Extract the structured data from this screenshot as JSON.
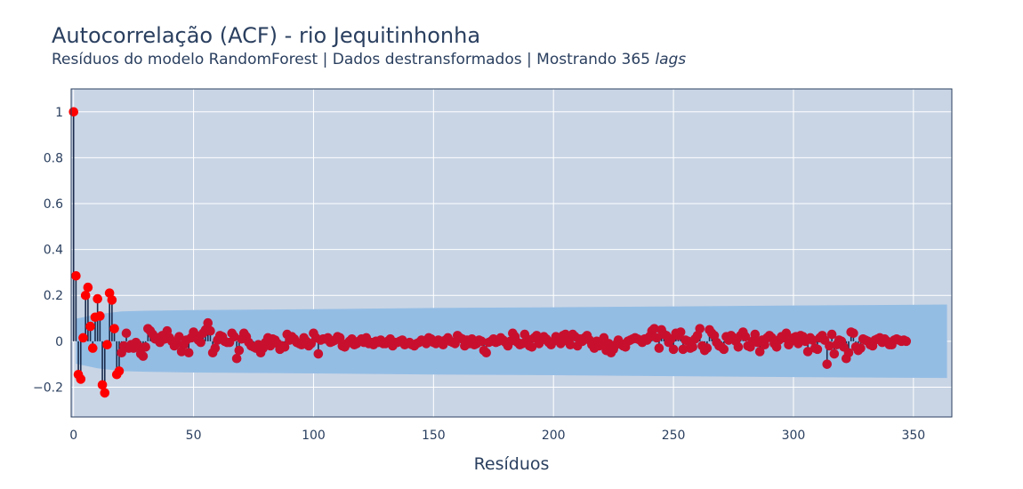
{
  "title": "Autocorrelação (ACF) - rio Jequitinhonha",
  "subtitle": {
    "text": "Resíduos do modelo RandomForest | Dados destransformados | Mostrando 365",
    "italic_suffix": "lags"
  },
  "colors": {
    "plot_background": "#c9d5e5",
    "confidence_band": "#94bde4",
    "stem": "#1a2b4c",
    "marker": "#ff0000",
    "marker_muted": "#c8102e",
    "grid": "#ffffff",
    "text": "#2a3f5f"
  },
  "chart_data": {
    "type": "scatter",
    "xlabel": "Resíduos",
    "ylabel": "",
    "xlim": [
      -1,
      366
    ],
    "ylim": [
      -0.33,
      1.1
    ],
    "x_ticks": [
      0,
      50,
      100,
      150,
      200,
      250,
      300,
      350
    ],
    "x_tick_labels": [
      "0",
      "50",
      "100",
      "150",
      "200",
      "250",
      "300",
      "350"
    ],
    "y_ticks": [
      -0.2,
      0,
      0.2,
      0.4,
      0.6,
      0.8,
      1
    ],
    "y_tick_labels": [
      "−0.2",
      "0",
      "0.2",
      "0.4",
      "0.6",
      "0.8",
      "1"
    ],
    "grid": true,
    "confidence_band": {
      "lags": [
        1,
        10,
        20,
        30,
        50,
        100,
        150,
        200,
        250,
        300,
        364
      ],
      "upper": [
        0.098,
        0.118,
        0.13,
        0.133,
        0.136,
        0.14,
        0.145,
        0.148,
        0.152,
        0.156,
        0.16
      ],
      "lower": [
        -0.098,
        -0.118,
        -0.13,
        -0.133,
        -0.136,
        -0.14,
        -0.145,
        -0.148,
        -0.152,
        -0.156,
        -0.16
      ]
    },
    "lags_start": 0,
    "acf": [
      1.0,
      0.285,
      -0.145,
      -0.165,
      0.015,
      0.2,
      0.235,
      0.065,
      -0.03,
      0.105,
      0.185,
      0.11,
      -0.19,
      -0.225,
      -0.015,
      0.21,
      0.18,
      0.055,
      -0.145,
      -0.13,
      -0.05,
      -0.02,
      0.035,
      -0.03,
      -0.015,
      -0.03,
      -0.005,
      -0.02,
      -0.055,
      -0.065,
      -0.025,
      0.055,
      0.045,
      0.03,
      0.01,
      0.015,
      -0.005,
      0.025,
      0.01,
      0.045,
      0.015,
      0.0,
      -0.02,
      -0.01,
      0.02,
      -0.045,
      -0.015,
      0.005,
      -0.05,
      0.015,
      0.04,
      0.025,
      0.005,
      -0.005,
      0.035,
      0.05,
      0.08,
      0.045,
      -0.05,
      -0.03,
      0.005,
      0.025,
      0.02,
      0.0,
      -0.005,
      -0.005,
      0.035,
      0.02,
      -0.075,
      -0.04,
      0.01,
      0.035,
      0.02,
      -0.005,
      -0.02,
      -0.025,
      -0.03,
      -0.015,
      -0.05,
      -0.03,
      -0.005,
      0.015,
      -0.02,
      0.01,
      0.005,
      -0.01,
      -0.035,
      -0.02,
      -0.025,
      0.03,
      0.005,
      0.02,
      0.01,
      -0.005,
      -0.01,
      -0.015,
      0.015,
      0.0,
      -0.02,
      -0.01,
      0.035,
      0.015,
      -0.055,
      0.005,
      0.01,
      0.01,
      0.015,
      -0.005,
      0.0,
      0.005,
      0.02,
      0.015,
      -0.02,
      -0.025,
      -0.01,
      0.0,
      0.01,
      -0.015,
      -0.01,
      0.0,
      0.01,
      -0.005,
      0.015,
      -0.01,
      -0.005,
      -0.015,
      0.0,
      -0.005,
      0.005,
      -0.01,
      -0.01,
      0.0,
      0.01,
      -0.02,
      -0.005,
      -0.005,
      0.0,
      0.005,
      -0.015,
      -0.01,
      -0.005,
      -0.015,
      -0.02,
      -0.01,
      -0.005,
      0.005,
      0.0,
      -0.01,
      0.015,
      0.01,
      -0.005,
      -0.01,
      0.005,
      0.0,
      -0.015,
      0.005,
      0.015,
      0.0,
      -0.005,
      -0.01,
      0.025,
      0.015,
      0.01,
      -0.02,
      0.005,
      -0.01,
      0.01,
      -0.015,
      -0.01,
      0.005,
      0.0,
      -0.04,
      -0.05,
      -0.005,
      0.0,
      0.01,
      -0.005,
      0.0,
      0.015,
      0.005,
      -0.005,
      -0.02,
      0.0,
      0.035,
      0.02,
      -0.005,
      -0.015,
      -0.01,
      0.03,
      0.01,
      -0.02,
      -0.025,
      0.015,
      0.025,
      -0.01,
      0.005,
      0.02,
      0.01,
      -0.005,
      -0.015,
      0.0,
      0.02,
      0.015,
      -0.01,
      0.025,
      0.03,
      0.0,
      -0.015,
      0.03,
      0.02,
      -0.02,
      0.01,
      0.0,
      0.015,
      0.025,
      0.005,
      -0.015,
      -0.03,
      0.0,
      -0.02,
      -0.01,
      0.015,
      -0.04,
      -0.01,
      -0.05,
      -0.035,
      -0.015,
      0.005,
      -0.01,
      -0.02,
      -0.025,
      0.0,
      0.005,
      0.01,
      0.015,
      0.01,
      0.005,
      -0.005,
      0.01,
      0.005,
      0.02,
      0.045,
      0.055,
      0.015,
      -0.03,
      0.05,
      0.03,
      0.025,
      -0.005,
      0.01,
      -0.035,
      0.035,
      0.025,
      0.04,
      -0.035,
      0.005,
      0.0,
      -0.03,
      -0.025,
      0.01,
      0.025,
      0.055,
      -0.02,
      -0.04,
      -0.03,
      0.05,
      0.035,
      0.025,
      -0.005,
      -0.02,
      -0.025,
      -0.035,
      0.02,
      0.005,
      0.025,
      0.015,
      0.0,
      -0.025,
      0.025,
      0.04,
      0.02,
      -0.02,
      -0.025,
      0.0,
      0.03,
      -0.005,
      -0.045,
      0.005,
      -0.015,
      0.015,
      0.025,
      0.015,
      -0.01,
      -0.025,
      0.005,
      0.02,
      0.015,
      0.035,
      -0.015,
      0.0,
      0.015,
      0.02,
      -0.01,
      0.025,
      0.02,
      0.0,
      -0.045,
      0.015,
      0.005,
      -0.03,
      -0.035,
      0.015,
      0.025,
      0.005,
      -0.1,
      -0.02,
      0.03,
      -0.055,
      -0.015,
      0.005,
      0.0,
      -0.025,
      -0.075,
      -0.05,
      0.04,
      0.035,
      -0.025,
      -0.04,
      -0.03,
      0.01,
      0.005,
      0.0,
      -0.015,
      -0.02,
      0.005,
      0.01,
      0.015,
      -0.005,
      0.01,
      0.0,
      -0.015,
      -0.015,
      0.005,
      0.01,
      0.005,
      0.0,
      0.005,
      0.0
    ]
  }
}
